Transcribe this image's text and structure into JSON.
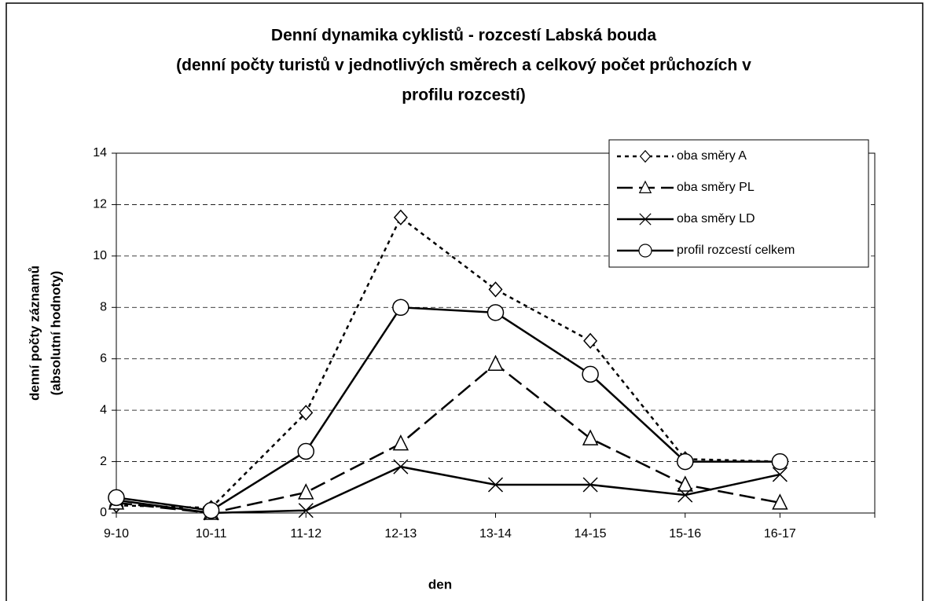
{
  "chart_data": {
    "type": "line",
    "title": [
      "Denní dynamika cyklistů - rozcestí Labská bouda",
      "(denní počty turistů v jednotlivých směrech a celkový počet průchozích v",
      "profilu rozcestí)"
    ],
    "x_label": "den",
    "y_label": [
      "denní počty záznamů",
      "(absolutní hodnoty)"
    ],
    "categories": [
      "9-10",
      "10-11",
      "11-12",
      "12-13",
      "13-14",
      "14-15",
      "15-16",
      "16-17"
    ],
    "series": [
      {
        "name": "oba směry A",
        "color": "#000000",
        "dash": "5,5",
        "marker": "diamond",
        "values": [
          0.3,
          0.2,
          3.9,
          11.5,
          8.7,
          6.7,
          2.1,
          2.0
        ]
      },
      {
        "name": "oba směry PL",
        "color": "#000000",
        "dash": "20,8",
        "marker": "triangle",
        "values": [
          0.4,
          0.0,
          0.8,
          2.7,
          5.8,
          2.9,
          1.1,
          0.4
        ]
      },
      {
        "name": "oba směry LD",
        "color": "#000000",
        "dash": "none",
        "marker": "x",
        "values": [
          0.5,
          0.0,
          0.1,
          1.8,
          1.1,
          1.1,
          0.7,
          1.5
        ]
      },
      {
        "name": "profil rozcestí celkem",
        "color": "#000000",
        "dash": "none",
        "marker": "circle",
        "values": [
          0.6,
          0.1,
          2.4,
          8.0,
          7.8,
          5.4,
          2.0,
          2.0
        ]
      }
    ],
    "ylim": [
      0,
      14
    ],
    "yticks": [
      0,
      2,
      4,
      6,
      8,
      10,
      12,
      14
    ],
    "grid": true,
    "legend": "upper right"
  }
}
